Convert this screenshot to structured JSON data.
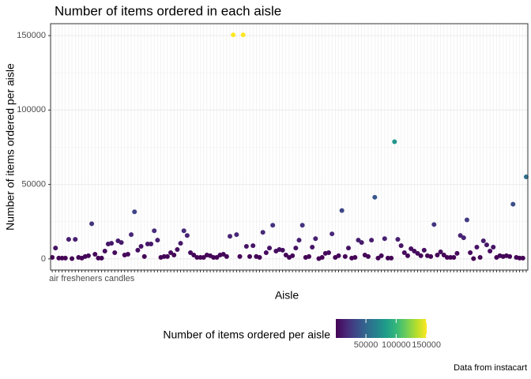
{
  "chart_data": {
    "type": "scatter",
    "title": "Number of items ordered in each aisle",
    "x_label": "Aisle",
    "y_label": "Number of items ordered per aisle",
    "caption": "Data from instacart",
    "categories": [
      "air fresheners candles",
      null,
      null,
      null,
      null,
      null,
      null,
      null,
      null,
      null,
      null,
      null,
      null,
      null,
      null,
      null,
      null,
      null,
      null,
      null,
      null,
      null,
      null,
      null,
      null,
      null,
      null,
      null,
      null,
      null,
      null,
      null,
      null,
      null,
      null,
      null,
      null,
      null,
      null,
      null,
      null,
      null,
      null,
      null,
      null,
      null,
      null,
      null,
      null,
      null,
      null,
      null,
      null,
      null,
      null,
      null,
      null,
      null,
      null,
      null,
      null,
      null,
      null,
      null,
      null,
      null,
      null,
      null,
      null,
      null,
      null,
      null,
      null,
      null,
      null,
      null,
      null,
      null,
      null,
      null,
      null,
      null,
      null,
      null,
      null,
      null,
      null,
      null,
      null,
      null,
      null,
      null,
      null,
      null,
      null,
      null,
      null,
      null,
      null,
      null,
      null,
      null,
      null,
      null,
      null,
      null,
      null,
      null,
      null,
      null,
      null,
      null,
      null,
      null,
      null,
      null,
      null,
      null,
      null,
      null,
      null,
      null,
      null,
      null,
      null,
      null,
      null,
      null,
      null,
      null,
      null,
      null,
      null,
      null,
      null,
      null,
      null,
      null,
      null,
      null,
      null,
      null,
      null,
      null,
      null
    ],
    "values": [
      1000,
      7300,
      500,
      500,
      500,
      13100,
      200,
      13100,
      1000,
      500,
      1600,
      2100,
      23600,
      3100,
      500,
      500,
      5200,
      10000,
      10500,
      4200,
      12100,
      11000,
      2600,
      3100,
      16300,
      31600,
      5800,
      8400,
      1600,
      10000,
      10000,
      18900,
      12600,
      1000,
      1600,
      1600,
      4200,
      2600,
      6300,
      10500,
      18900,
      15700,
      4200,
      2600,
      1000,
      1000,
      1000,
      2600,
      2100,
      1000,
      1000,
      2600,
      3100,
      1600,
      15200,
      150500,
      16300,
      1600,
      150500,
      8400,
      1600,
      8900,
      1600,
      1000,
      17800,
      4200,
      7300,
      22600,
      5200,
      6300,
      5800,
      2600,
      1000,
      2100,
      7300,
      12600,
      22600,
      1000,
      1600,
      7900,
      13600,
      200,
      1000,
      3700,
      4200,
      16800,
      1000,
      2100,
      32500,
      1600,
      7300,
      500,
      1000,
      12600,
      11000,
      2600,
      1600,
      12600,
      41400,
      500,
      2100,
      13600,
      500,
      500,
      78700,
      13100,
      8900,
      4200,
      2100,
      6800,
      5200,
      3700,
      2100,
      5800,
      2100,
      1600,
      23100,
      2600,
      4700,
      2600,
      1000,
      1000,
      1000,
      3700,
      15700,
      14200,
      26200,
      4200,
      200,
      7900,
      1000,
      12100,
      9400,
      5200,
      7900,
      1000,
      2100,
      1600,
      2100,
      1600,
      36700,
      1000,
      500,
      500,
      55100
    ],
    "ylim": [
      -7500,
      158000
    ],
    "yticks": [
      0,
      50000,
      100000,
      150000
    ],
    "grid": true,
    "color_scale": {
      "title": "Number of items ordered per aisle",
      "limits": [
        200,
        150500
      ],
      "ticks": [
        50000,
        100000,
        150000
      ],
      "colors": [
        "#440154",
        "#482878",
        "#3e4989",
        "#31688e",
        "#26828e",
        "#1f9e89",
        "#35b779",
        "#6ece58",
        "#b5de2b",
        "#fde725"
      ]
    }
  }
}
